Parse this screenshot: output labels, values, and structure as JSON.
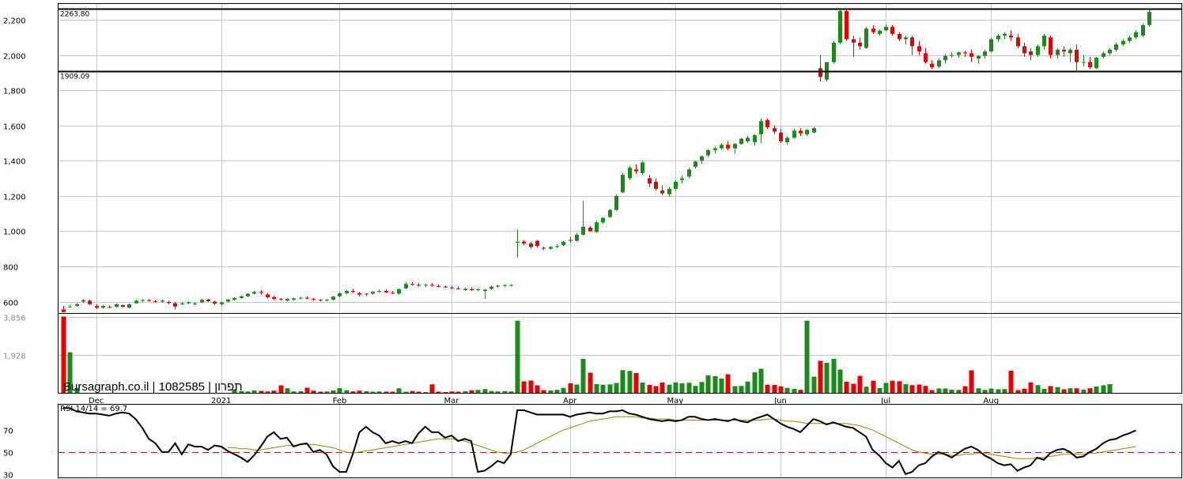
{
  "chart_data": {
    "type": "candlestick",
    "watermark": "Bursagraph.co.il | 1082585 | תפרון",
    "price_axis": {
      "ticks": [
        600,
        800,
        1000,
        1200,
        1400,
        1600,
        1800,
        2000,
        2200
      ],
      "tick_labels": [
        "600",
        "800",
        "1,000",
        "1,200",
        "1,400",
        "1,600",
        "1,800",
        "2,000",
        "2,200"
      ],
      "ylim": [
        535,
        2290
      ]
    },
    "volume_axis": {
      "ticks": [
        1928,
        3856
      ],
      "tick_labels": [
        "1,928",
        "3,856"
      ],
      "ylim": [
        0,
        4000
      ]
    },
    "rsi": {
      "label": "RSI 14/14 = 69.7",
      "ticks": [
        30,
        50,
        70
      ],
      "tick_labels": [
        "30",
        "50",
        "70"
      ],
      "ylim": [
        27,
        93
      ],
      "reference": 50
    },
    "resistance_levels": [
      {
        "label": "2263.80",
        "value": 2263.8
      },
      {
        "label": "1909.09",
        "value": 1909.09
      }
    ],
    "month_labels": [
      {
        "label": "Dec",
        "index": 5
      },
      {
        "label": "2021",
        "index": 24
      },
      {
        "label": "Feb",
        "index": 42
      },
      {
        "label": "Mar",
        "index": 59
      },
      {
        "label": "Apr",
        "index": 77
      },
      {
        "label": "May",
        "index": 93
      },
      {
        "label": "Jun",
        "index": 109
      },
      {
        "label": "Jul",
        "index": 125
      },
      {
        "label": "Aug",
        "index": 141
      }
    ],
    "gridlines_x": [
      5,
      24,
      42,
      59,
      77,
      93,
      109,
      125,
      141
    ],
    "colors": {
      "up": "#1a8a1a",
      "down": "#e60000",
      "rsi_line": "#000000",
      "rsi_signal": "#8a8a00",
      "rsi_reference": "#cc0000"
    },
    "candles": [
      [
        555,
        575,
        545,
        540
      ],
      [
        570,
        582,
        565,
        572
      ],
      [
        575,
        592,
        570,
        585
      ],
      [
        600,
        615,
        592,
        608
      ],
      [
        605,
        612,
        580,
        585
      ],
      [
        575,
        585,
        560,
        565
      ],
      [
        565,
        580,
        560,
        575
      ],
      [
        570,
        578,
        562,
        568
      ],
      [
        570,
        590,
        565,
        585
      ],
      [
        580,
        582,
        568,
        570
      ],
      [
        565,
        590,
        560,
        585
      ],
      [
        590,
        610,
        588,
        605
      ],
      [
        605,
        615,
        598,
        608
      ],
      [
        608,
        615,
        600,
        604
      ],
      [
        603,
        610,
        595,
        600
      ],
      [
        600,
        612,
        594,
        606
      ],
      [
        598,
        605,
        585,
        592
      ],
      [
        590,
        598,
        555,
        572
      ],
      [
        585,
        596,
        580,
        590
      ],
      [
        590,
        602,
        586,
        596
      ],
      [
        585,
        596,
        578,
        590
      ],
      [
        595,
        615,
        592,
        610
      ],
      [
        612,
        616,
        598,
        602
      ],
      [
        600,
        605,
        580,
        588
      ],
      [
        585,
        600,
        575,
        595
      ],
      [
        600,
        615,
        596,
        612
      ],
      [
        610,
        625,
        605,
        620
      ],
      [
        620,
        635,
        615,
        630
      ],
      [
        630,
        648,
        625,
        645
      ],
      [
        645,
        660,
        640,
        655
      ],
      [
        655,
        665,
        640,
        650
      ],
      [
        640,
        648,
        620,
        625
      ],
      [
        625,
        632,
        610,
        615
      ],
      [
        615,
        620,
        605,
        610
      ],
      [
        605,
        620,
        600,
        615
      ],
      [
        610,
        622,
        605,
        618
      ],
      [
        618,
        628,
        612,
        622
      ],
      [
        622,
        630,
        612,
        618
      ],
      [
        615,
        620,
        605,
        610
      ],
      [
        610,
        615,
        600,
        607
      ],
      [
        605,
        615,
        600,
        610
      ],
      [
        610,
        632,
        606,
        628
      ],
      [
        630,
        652,
        625,
        648
      ],
      [
        648,
        665,
        642,
        660
      ],
      [
        660,
        672,
        648,
        655
      ],
      [
        648,
        655,
        630,
        640
      ],
      [
        640,
        650,
        630,
        645
      ],
      [
        645,
        660,
        638,
        655
      ],
      [
        655,
        668,
        650,
        660
      ],
      [
        660,
        670,
        648,
        652
      ],
      [
        650,
        660,
        642,
        648
      ],
      [
        645,
        675,
        640,
        670
      ],
      [
        675,
        710,
        670,
        700
      ],
      [
        700,
        710,
        690,
        695
      ],
      [
        695,
        705,
        685,
        690
      ],
      [
        690,
        702,
        682,
        695
      ],
      [
        695,
        705,
        685,
        690
      ],
      [
        688,
        698,
        680,
        685
      ],
      [
        685,
        692,
        678,
        680
      ],
      [
        680,
        690,
        672,
        675
      ],
      [
        675,
        686,
        668,
        670
      ],
      [
        665,
        680,
        660,
        672
      ],
      [
        670,
        680,
        660,
        665
      ],
      [
        665,
        675,
        658,
        670
      ],
      [
        660,
        672,
        615,
        668
      ],
      [
        672,
        690,
        666,
        685
      ],
      [
        685,
        697,
        680,
        690
      ],
      [
        690,
        700,
        684,
        693
      ],
      [
        692,
        700,
        686,
        694
      ],
      [
        935,
        1010,
        850,
        940
      ],
      [
        940,
        950,
        920,
        930
      ],
      [
        930,
        940,
        900,
        910
      ],
      [
        945,
        950,
        905,
        915
      ],
      [
        905,
        912,
        892,
        900
      ],
      [
        900,
        915,
        895,
        910
      ],
      [
        910,
        925,
        905,
        915
      ],
      [
        920,
        945,
        915,
        940
      ],
      [
        950,
        965,
        935,
        945
      ],
      [
        945,
        990,
        940,
        980
      ],
      [
        980,
        1170,
        975,
        1025
      ],
      [
        1020,
        1030,
        995,
        1000
      ],
      [
        995,
        1060,
        990,
        1050
      ],
      [
        1050,
        1080,
        1040,
        1075
      ],
      [
        1080,
        1125,
        1075,
        1120
      ],
      [
        1120,
        1210,
        1115,
        1200
      ],
      [
        1220,
        1330,
        1215,
        1320
      ],
      [
        1300,
        1370,
        1290,
        1360
      ],
      [
        1350,
        1380,
        1325,
        1340
      ],
      [
        1330,
        1400,
        1320,
        1390
      ],
      [
        1300,
        1320,
        1250,
        1270
      ],
      [
        1280,
        1300,
        1230,
        1240
      ],
      [
        1230,
        1260,
        1205,
        1215
      ],
      [
        1210,
        1250,
        1195,
        1240
      ],
      [
        1240,
        1290,
        1230,
        1280
      ],
      [
        1290,
        1315,
        1270,
        1300
      ],
      [
        1310,
        1360,
        1300,
        1350
      ],
      [
        1365,
        1400,
        1355,
        1395
      ],
      [
        1400,
        1430,
        1380,
        1425
      ],
      [
        1430,
        1465,
        1420,
        1460
      ],
      [
        1460,
        1480,
        1440,
        1470
      ],
      [
        1470,
        1500,
        1460,
        1490
      ],
      [
        1490,
        1510,
        1460,
        1470
      ],
      [
        1470,
        1500,
        1440,
        1495
      ],
      [
        1495,
        1530,
        1490,
        1525
      ],
      [
        1510,
        1540,
        1500,
        1530
      ],
      [
        1505,
        1550,
        1485,
        1545
      ],
      [
        1550,
        1640,
        1500,
        1625
      ],
      [
        1630,
        1640,
        1580,
        1590
      ],
      [
        1585,
        1600,
        1550,
        1565
      ],
      [
        1560,
        1580,
        1500,
        1510
      ],
      [
        1505,
        1540,
        1490,
        1530
      ],
      [
        1530,
        1580,
        1525,
        1570
      ],
      [
        1570,
        1585,
        1540,
        1555
      ],
      [
        1550,
        1580,
        1540,
        1575
      ],
      [
        1560,
        1590,
        1555,
        1585
      ],
      [
        1925,
        2000,
        1850,
        1875
      ],
      [
        1860,
        1960,
        1850,
        1960
      ],
      [
        1960,
        2080,
        1950,
        2070
      ],
      [
        2070,
        2260,
        2060,
        2250
      ],
      [
        2250,
        2265,
        2080,
        2090
      ],
      [
        2090,
        2110,
        1990,
        2070
      ],
      [
        2070,
        2100,
        2030,
        2050
      ],
      [
        2040,
        2160,
        2035,
        2150
      ],
      [
        2150,
        2170,
        2120,
        2130
      ],
      [
        2120,
        2145,
        2110,
        2138
      ],
      [
        2140,
        2175,
        2135,
        2160
      ],
      [
        2160,
        2170,
        2110,
        2120
      ],
      [
        2120,
        2130,
        2080,
        2090
      ],
      [
        2090,
        2110,
        2060,
        2100
      ],
      [
        2100,
        2110,
        2000,
        2050
      ],
      [
        2050,
        2080,
        2000,
        2020
      ],
      [
        2010,
        2040,
        1950,
        1960
      ],
      [
        1950,
        1970,
        1920,
        1930
      ],
      [
        1935,
        1980,
        1925,
        1970
      ],
      [
        1970,
        2005,
        1950,
        1995
      ],
      [
        1995,
        2015,
        1985,
        2000
      ],
      [
        2000,
        2020,
        1985,
        2015
      ],
      [
        2015,
        2025,
        1990,
        2010
      ],
      [
        2010,
        2030,
        1960,
        1990
      ],
      [
        1980,
        2000,
        1950,
        1995
      ],
      [
        1995,
        2030,
        1980,
        2020
      ],
      [
        2020,
        2100,
        2015,
        2090
      ],
      [
        2090,
        2120,
        2075,
        2110
      ],
      [
        2110,
        2130,
        2090,
        2120
      ],
      [
        2110,
        2140,
        2080,
        2100
      ],
      [
        2100,
        2120,
        2040,
        2050
      ],
      [
        2050,
        2070,
        1990,
        2010
      ],
      [
        2020,
        2040,
        1970,
        2000
      ],
      [
        2000,
        2060,
        1990,
        2050
      ],
      [
        2050,
        2120,
        2030,
        2110
      ],
      [
        2100,
        2110,
        1980,
        2000
      ],
      [
        2000,
        2040,
        1980,
        2030
      ],
      [
        2030,
        2050,
        1990,
        2020
      ],
      [
        2010,
        2040,
        1960,
        2030
      ],
      [
        2030,
        2060,
        1900,
        1960
      ],
      [
        1960,
        2000,
        1935,
        1960
      ],
      [
        1960,
        1990,
        1920,
        1930
      ],
      [
        1925,
        1990,
        1920,
        1985
      ],
      [
        1990,
        2020,
        1980,
        2010
      ],
      [
        2010,
        2040,
        2000,
        2030
      ],
      [
        2030,
        2070,
        2020,
        2060
      ],
      [
        2060,
        2090,
        2050,
        2080
      ],
      [
        2080,
        2110,
        2070,
        2100
      ],
      [
        2100,
        2140,
        2090,
        2130
      ],
      [
        2110,
        2180,
        2100,
        2170
      ],
      [
        2170,
        2260,
        2160,
        2245
      ]
    ],
    "volume": [
      3856,
      2050,
      250,
      0,
      0,
      0,
      0,
      0,
      0,
      0,
      0,
      0,
      0,
      0,
      0,
      0,
      0,
      0,
      0,
      0,
      0,
      0,
      0,
      0,
      0,
      0,
      160,
      90,
      70,
      120,
      100,
      70,
      110,
      380,
      230,
      70,
      80,
      260,
      110,
      60,
      70,
      120,
      240,
      130,
      70,
      110,
      80,
      60,
      70,
      60,
      60,
      230,
      60,
      90,
      60,
      40,
      430,
      60,
      40,
      70,
      60,
      80,
      130,
      150,
      190,
      90,
      70,
      90,
      70,
      3650,
      580,
      620,
      380,
      140,
      120,
      150,
      250,
      480,
      420,
      1720,
      1020,
      440,
      410,
      430,
      500,
      1150,
      1110,
      1000,
      520,
      400,
      340,
      520,
      410,
      530,
      480,
      510,
      350,
      550,
      890,
      840,
      720,
      940,
      340,
      350,
      570,
      1040,
      1220,
      410,
      400,
      330,
      250,
      200,
      150,
      3650,
      820,
      1620,
      1520,
      1720,
      1180,
      560,
      460,
      860,
      310,
      610,
      240,
      500,
      610,
      590,
      440,
      390,
      420,
      350,
      140,
      220,
      220,
      160,
      150,
      330,
      1140,
      230,
      150,
      220,
      180,
      190,
      1120,
      140,
      210,
      530,
      390,
      200,
      340,
      290,
      180,
      230,
      230,
      160,
      230,
      320,
      380,
      440
    ],
    "rsi_line": [
      90,
      90,
      87,
      86,
      85,
      85,
      84,
      83,
      85,
      86,
      85,
      80,
      72,
      62,
      58,
      50,
      50,
      58,
      48,
      57,
      55,
      55,
      52,
      56,
      55,
      51,
      48,
      45,
      41,
      47,
      55,
      64,
      68,
      62,
      63,
      55,
      57,
      58,
      50,
      52,
      48,
      37,
      32,
      32,
      48,
      68,
      73,
      68,
      65,
      58,
      60,
      58,
      60,
      58,
      67,
      73,
      68,
      68,
      63,
      65,
      60,
      62,
      60,
      32,
      33,
      37,
      42,
      40,
      48,
      88,
      88,
      86,
      84,
      84,
      84,
      84,
      84,
      82,
      84,
      85,
      86,
      85,
      85,
      87,
      87,
      88,
      85,
      84,
      82,
      80,
      79,
      78,
      79,
      78,
      79,
      82,
      82,
      80,
      79,
      80,
      79,
      78,
      80,
      78,
      77,
      80,
      82,
      84,
      80,
      76,
      73,
      71,
      68,
      74,
      80,
      78,
      75,
      77,
      75,
      73,
      72,
      68,
      64,
      52,
      47,
      40,
      36,
      42,
      30,
      32,
      38,
      40,
      46,
      50,
      48,
      45,
      49,
      53,
      55,
      52,
      47,
      44,
      40,
      38,
      39,
      33,
      36,
      38,
      45,
      43,
      49,
      52,
      53,
      50,
      45,
      46,
      50,
      53,
      58,
      61,
      62,
      65,
      67,
      69.7
    ],
    "rsi_signal": [
      null,
      null,
      null,
      null,
      null,
      null,
      null,
      null,
      null,
      null,
      null,
      null,
      null,
      null,
      null,
      null,
      null,
      null,
      null,
      null,
      null,
      null,
      null,
      null,
      null,
      54,
      54,
      53,
      53,
      52,
      52,
      53,
      54,
      55,
      56,
      56,
      57,
      57,
      57,
      56,
      55,
      54,
      52,
      50,
      49,
      50,
      51,
      52,
      53,
      54,
      55,
      56,
      57,
      58,
      59,
      60,
      61,
      62,
      62,
      62,
      61,
      60,
      58,
      56,
      54,
      52,
      50,
      49,
      49,
      50,
      52,
      55,
      58,
      61,
      64,
      67,
      70,
      72,
      74,
      76,
      78,
      79,
      80,
      81,
      82,
      82,
      82,
      82,
      81,
      81,
      80,
      80,
      80,
      79,
      79,
      79,
      79,
      79,
      79,
      79,
      79,
      79,
      79,
      79,
      79,
      79,
      79,
      80,
      80,
      79,
      78,
      78,
      77,
      76,
      76,
      76,
      76,
      76,
      76,
      76,
      75,
      74,
      72,
      70,
      67,
      64,
      61,
      58,
      55,
      52,
      50,
      49,
      48,
      48,
      48,
      47,
      47,
      48,
      48,
      49,
      49,
      48,
      47,
      46,
      45,
      44,
      44,
      44,
      45,
      45,
      46,
      47,
      48,
      48,
      48,
      48,
      49,
      49,
      50,
      51,
      52,
      53,
      54,
      55
    ]
  }
}
